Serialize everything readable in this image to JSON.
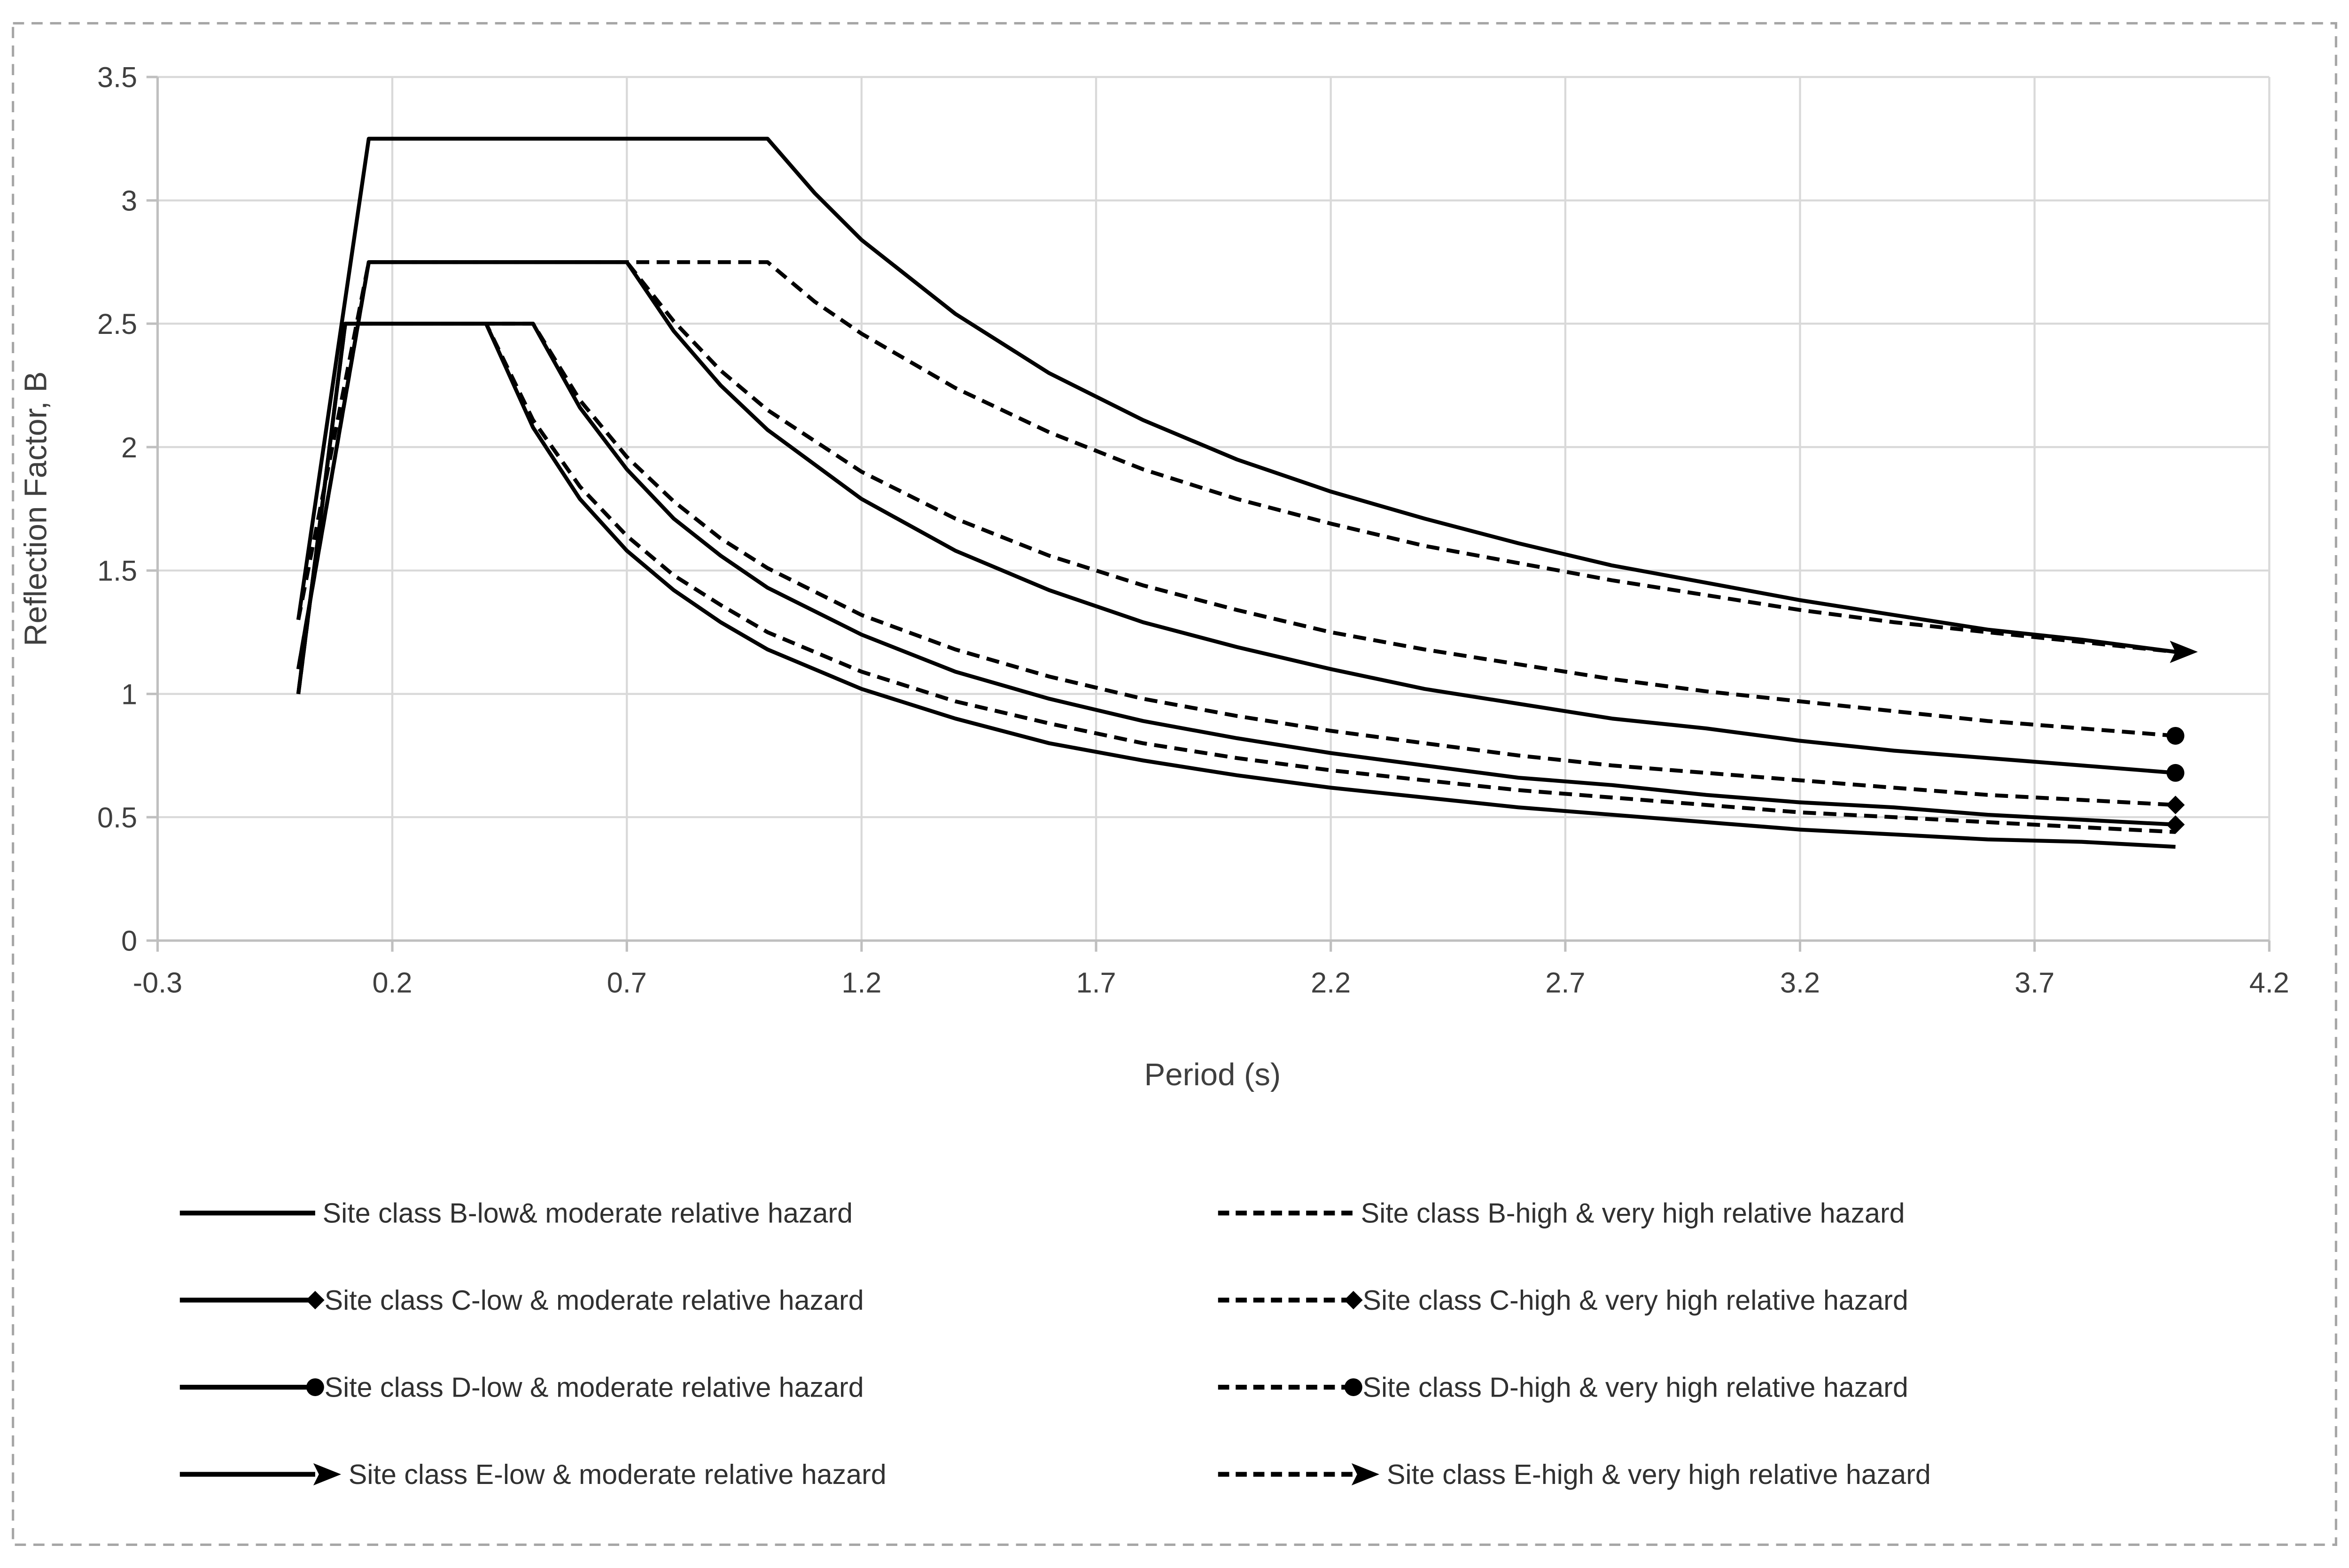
{
  "figure": {
    "background": "#ffffff",
    "border_color": "#a6a6a6",
    "text_color": "#3f3f3f"
  },
  "chart_data": {
    "type": "line",
    "title": "",
    "xlabel": "Period (s)",
    "ylabel": "Reflection Factor, B",
    "xlim": [
      -0.3,
      4.2
    ],
    "ylim": [
      0,
      3.5
    ],
    "grid": true,
    "legend_position": "bottom",
    "x_ticks": [
      -0.3,
      0.2,
      0.7,
      1.2,
      1.7,
      2.2,
      2.7,
      3.2,
      3.7,
      4.2
    ],
    "x_tick_labels": [
      "-0.3",
      "0.2",
      "0.7",
      "1.2",
      "1.7",
      "2.2",
      "2.7",
      "3.2",
      "3.7",
      "4.2"
    ],
    "y_ticks": [
      0,
      0.5,
      1,
      1.5,
      2,
      2.5,
      3,
      3.5
    ],
    "y_tick_labels": [
      "0",
      "0.5",
      "1",
      "1.5",
      "2",
      "2.5",
      "3",
      "3.5"
    ],
    "colors": {
      "line": "#000000",
      "grid": "#d9d9d9",
      "axis": "#bfbfbf"
    },
    "series": [
      {
        "key": "b-low",
        "label": "Site class B-low& moderate relative hazard",
        "dash": "solid",
        "marker": "none",
        "points": [
          [
            0,
            1.0
          ],
          [
            0.1,
            2.5
          ],
          [
            0.4,
            2.5
          ],
          [
            0.5,
            2.08
          ],
          [
            0.6,
            1.79
          ],
          [
            0.7,
            1.58
          ],
          [
            0.8,
            1.42
          ],
          [
            0.9,
            1.29
          ],
          [
            1.0,
            1.18
          ],
          [
            1.2,
            1.02
          ],
          [
            1.4,
            0.9
          ],
          [
            1.6,
            0.8
          ],
          [
            1.8,
            0.73
          ],
          [
            2.0,
            0.67
          ],
          [
            2.2,
            0.62
          ],
          [
            2.4,
            0.58
          ],
          [
            2.6,
            0.54
          ],
          [
            2.8,
            0.51
          ],
          [
            3.0,
            0.48
          ],
          [
            3.2,
            0.45
          ],
          [
            3.4,
            0.43
          ],
          [
            3.6,
            0.41
          ],
          [
            3.8,
            0.4
          ],
          [
            4.0,
            0.38
          ]
        ]
      },
      {
        "key": "b-high",
        "label": "Site class B-high & very high relative hazard",
        "dash": "dashed",
        "marker": "none",
        "points": [
          [
            0,
            1.0
          ],
          [
            0.1,
            2.5
          ],
          [
            0.4,
            2.5
          ],
          [
            0.5,
            2.11
          ],
          [
            0.6,
            1.84
          ],
          [
            0.7,
            1.64
          ],
          [
            0.8,
            1.48
          ],
          [
            0.9,
            1.36
          ],
          [
            1.0,
            1.25
          ],
          [
            1.2,
            1.09
          ],
          [
            1.4,
            0.97
          ],
          [
            1.6,
            0.88
          ],
          [
            1.8,
            0.8
          ],
          [
            2.0,
            0.74
          ],
          [
            2.2,
            0.69
          ],
          [
            2.4,
            0.65
          ],
          [
            2.6,
            0.61
          ],
          [
            2.8,
            0.58
          ],
          [
            3.0,
            0.55
          ],
          [
            3.2,
            0.52
          ],
          [
            3.4,
            0.5
          ],
          [
            3.6,
            0.48
          ],
          [
            3.8,
            0.46
          ],
          [
            4.0,
            0.44
          ]
        ]
      },
      {
        "key": "c-low",
        "label": "Site class C-low & moderate relative hazard",
        "dash": "solid",
        "marker": "diamond",
        "points": [
          [
            0,
            1.0
          ],
          [
            0.1,
            2.5
          ],
          [
            0.5,
            2.5
          ],
          [
            0.6,
            2.16
          ],
          [
            0.7,
            1.91
          ],
          [
            0.8,
            1.71
          ],
          [
            0.9,
            1.56
          ],
          [
            1.0,
            1.43
          ],
          [
            1.2,
            1.24
          ],
          [
            1.4,
            1.09
          ],
          [
            1.6,
            0.98
          ],
          [
            1.8,
            0.89
          ],
          [
            2.0,
            0.82
          ],
          [
            2.2,
            0.76
          ],
          [
            2.4,
            0.71
          ],
          [
            2.6,
            0.66
          ],
          [
            2.8,
            0.63
          ],
          [
            3.0,
            0.59
          ],
          [
            3.2,
            0.56
          ],
          [
            3.4,
            0.54
          ],
          [
            3.6,
            0.51
          ],
          [
            3.8,
            0.49
          ],
          [
            4.0,
            0.47
          ]
        ]
      },
      {
        "key": "c-high",
        "label": "Site class C-high & very high relative hazard",
        "dash": "dashed",
        "marker": "diamond",
        "points": [
          [
            0,
            1.0
          ],
          [
            0.1,
            2.5
          ],
          [
            0.5,
            2.5
          ],
          [
            0.6,
            2.19
          ],
          [
            0.7,
            1.96
          ],
          [
            0.8,
            1.78
          ],
          [
            0.9,
            1.63
          ],
          [
            1.0,
            1.51
          ],
          [
            1.2,
            1.32
          ],
          [
            1.4,
            1.18
          ],
          [
            1.6,
            1.07
          ],
          [
            1.8,
            0.98
          ],
          [
            2.0,
            0.91
          ],
          [
            2.2,
            0.85
          ],
          [
            2.4,
            0.8
          ],
          [
            2.6,
            0.75
          ],
          [
            2.8,
            0.71
          ],
          [
            3.0,
            0.68
          ],
          [
            3.2,
            0.65
          ],
          [
            3.4,
            0.62
          ],
          [
            3.6,
            0.59
          ],
          [
            3.8,
            0.57
          ],
          [
            4.0,
            0.55
          ]
        ]
      },
      {
        "key": "d-low",
        "label": "Site class D-low & moderate relative hazard",
        "dash": "solid",
        "marker": "circle",
        "points": [
          [
            0,
            1.1
          ],
          [
            0.15,
            2.75
          ],
          [
            0.7,
            2.75
          ],
          [
            0.8,
            2.47
          ],
          [
            0.9,
            2.25
          ],
          [
            1.0,
            2.07
          ],
          [
            1.2,
            1.79
          ],
          [
            1.4,
            1.58
          ],
          [
            1.6,
            1.42
          ],
          [
            1.8,
            1.29
          ],
          [
            2.0,
            1.19
          ],
          [
            2.2,
            1.1
          ],
          [
            2.4,
            1.02
          ],
          [
            2.6,
            0.96
          ],
          [
            2.8,
            0.9
          ],
          [
            3.0,
            0.86
          ],
          [
            3.2,
            0.81
          ],
          [
            3.4,
            0.77
          ],
          [
            3.6,
            0.74
          ],
          [
            3.8,
            0.71
          ],
          [
            4.0,
            0.68
          ]
        ]
      },
      {
        "key": "d-high",
        "label": "Site class D-high & very high relative hazard",
        "dash": "dashed",
        "marker": "circle",
        "points": [
          [
            0,
            1.1
          ],
          [
            0.15,
            2.75
          ],
          [
            0.7,
            2.75
          ],
          [
            0.8,
            2.51
          ],
          [
            0.9,
            2.31
          ],
          [
            1.0,
            2.15
          ],
          [
            1.2,
            1.9
          ],
          [
            1.4,
            1.71
          ],
          [
            1.6,
            1.56
          ],
          [
            1.8,
            1.44
          ],
          [
            2.0,
            1.34
          ],
          [
            2.2,
            1.25
          ],
          [
            2.4,
            1.18
          ],
          [
            2.6,
            1.12
          ],
          [
            2.8,
            1.06
          ],
          [
            3.0,
            1.01
          ],
          [
            3.2,
            0.97
          ],
          [
            3.4,
            0.93
          ],
          [
            3.6,
            0.89
          ],
          [
            3.8,
            0.86
          ],
          [
            4.0,
            0.83
          ]
        ]
      },
      {
        "key": "e-low",
        "label": "Site class E-low & moderate relative hazard",
        "dash": "solid",
        "marker": "arrow",
        "points": [
          [
            0,
            1.3
          ],
          [
            0.15,
            3.25
          ],
          [
            1.0,
            3.25
          ],
          [
            1.1,
            3.03
          ],
          [
            1.2,
            2.84
          ],
          [
            1.4,
            2.54
          ],
          [
            1.6,
            2.3
          ],
          [
            1.8,
            2.11
          ],
          [
            2.0,
            1.95
          ],
          [
            2.2,
            1.82
          ],
          [
            2.4,
            1.71
          ],
          [
            2.6,
            1.61
          ],
          [
            2.8,
            1.52
          ],
          [
            3.0,
            1.45
          ],
          [
            3.2,
            1.38
          ],
          [
            3.4,
            1.32
          ],
          [
            3.6,
            1.26
          ],
          [
            3.8,
            1.22
          ],
          [
            4.0,
            1.17
          ]
        ]
      },
      {
        "key": "e-high",
        "label": "Site class E-high & very high  relative hazard",
        "dash": "dashed",
        "marker": "arrow",
        "points": [
          [
            0,
            1.3
          ],
          [
            0.15,
            2.75
          ],
          [
            1.0,
            2.75
          ],
          [
            1.1,
            2.59
          ],
          [
            1.2,
            2.46
          ],
          [
            1.4,
            2.24
          ],
          [
            1.6,
            2.06
          ],
          [
            1.8,
            1.91
          ],
          [
            2.0,
            1.79
          ],
          [
            2.2,
            1.69
          ],
          [
            2.4,
            1.6
          ],
          [
            2.6,
            1.53
          ],
          [
            2.8,
            1.46
          ],
          [
            3.0,
            1.4
          ],
          [
            3.2,
            1.34
          ],
          [
            3.4,
            1.29
          ],
          [
            3.6,
            1.25
          ],
          [
            3.8,
            1.21
          ],
          [
            4.0,
            1.17
          ]
        ]
      }
    ]
  }
}
